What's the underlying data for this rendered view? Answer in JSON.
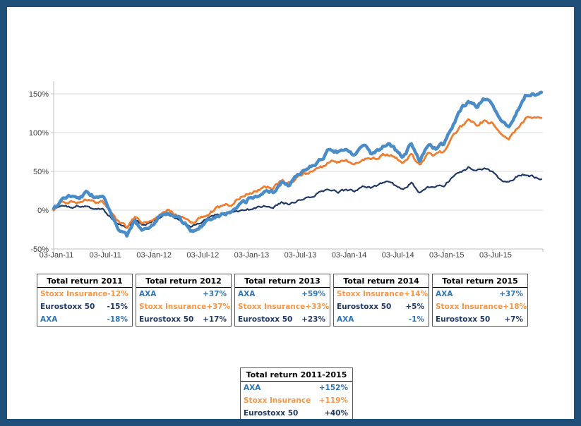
{
  "frame": {
    "border_color": "#1F4E79",
    "background": "#FFFFFF"
  },
  "chart_data": {
    "type": "line",
    "title": "",
    "xlabel": "",
    "ylabel": "",
    "grid": "horizontal",
    "legend": false,
    "ylim": [
      -50,
      175
    ],
    "y_ticks": [
      150,
      100,
      50,
      0,
      -50
    ],
    "y_tick_labels": [
      "150%",
      "100%",
      "50%",
      "0%",
      "-50%"
    ],
    "x_tick_labels": [
      "03-Jan-11",
      "03-Jul-11",
      "03-Jan-12",
      "03-Jul-12",
      "03-Jan-13",
      "03-Jul-13",
      "03-Jan-14",
      "03-Jul-14",
      "03-Jan-15",
      "03-Jul-15"
    ],
    "x_months_span": 60,
    "series": [
      {
        "name": "AXA",
        "color": "#4A8CC7",
        "stroke_width": 4.5,
        "monthly_values_pct": [
          0,
          14,
          18,
          15,
          22,
          17,
          21,
          -6,
          -24,
          -33,
          -14,
          -25,
          -18,
          -8,
          -2,
          -8,
          -16,
          -26,
          -21,
          -13,
          -6,
          -4,
          -2,
          6,
          14,
          18,
          25,
          23,
          36,
          33,
          47,
          54,
          58,
          66,
          80,
          76,
          80,
          70,
          86,
          74,
          79,
          87,
          78,
          68,
          86,
          62,
          84,
          80,
          86,
          106,
          128,
          141,
          133,
          143,
          137,
          118,
          106,
          127,
          147,
          149,
          152
        ]
      },
      {
        "name": "Stoxx Insurance",
        "color": "#ED7D31",
        "stroke_width": 2.8,
        "monthly_values_pct": [
          0,
          8,
          11,
          9,
          13,
          9,
          11,
          -4,
          -16,
          -21,
          -10,
          -16,
          -12,
          -6,
          -1,
          -5,
          -11,
          -16,
          -11,
          -4,
          2,
          5,
          9,
          16,
          22,
          25,
          31,
          29,
          38,
          35,
          43,
          47,
          51,
          56,
          64,
          61,
          63,
          57,
          68,
          64,
          69,
          73,
          68,
          61,
          72,
          57,
          73,
          72,
          76,
          93,
          106,
          117,
          110,
          116,
          112,
          97,
          91,
          106,
          117,
          120,
          119
        ]
      },
      {
        "name": "Eurostoxx 50",
        "color": "#1F3864",
        "stroke_width": 2.2,
        "monthly_values_pct": [
          0,
          5,
          3,
          6,
          4,
          0,
          3,
          -10,
          -19,
          -23,
          -12,
          -19,
          -15,
          -9,
          -6,
          -10,
          -16,
          -21,
          -16,
          -10,
          -6,
          -5,
          -3,
          -1,
          1,
          3,
          6,
          4,
          11,
          7,
          13,
          16,
          19,
          24,
          27,
          24,
          26,
          25,
          31,
          29,
          33,
          36,
          32,
          27,
          34,
          23,
          31,
          30,
          32,
          42,
          49,
          55,
          51,
          54,
          48,
          38,
          35,
          44,
          47,
          43,
          40
        ]
      }
    ],
    "axis_color": "#BFBFBF",
    "gridline_color": "#D9D9D9",
    "tick_label_color": "#404040"
  },
  "tables": [
    {
      "title": "Total return 2011",
      "rows": [
        {
          "label": "Stoxx Insurance",
          "value": "-12%",
          "color": "#F79646"
        },
        {
          "label": "Eurostoxx 50",
          "value": "-15%",
          "color": "#1F3864"
        },
        {
          "label": "AXA",
          "value": "-18%",
          "color": "#2E75B6"
        }
      ]
    },
    {
      "title": "Total return 2012",
      "rows": [
        {
          "label": "AXA",
          "value": "+37%",
          "color": "#2E75B6"
        },
        {
          "label": "Stoxx Insurance",
          "value": "+37%",
          "color": "#F79646"
        },
        {
          "label": "Eurostoxx 50",
          "value": "+17%",
          "color": "#1F3864"
        }
      ]
    },
    {
      "title": "Total return 2013",
      "rows": [
        {
          "label": "AXA",
          "value": "+59%",
          "color": "#2E75B6"
        },
        {
          "label": "Stoxx Insurance",
          "value": "+33%",
          "color": "#F79646"
        },
        {
          "label": "Eurostoxx 50",
          "value": "+23%",
          "color": "#1F3864"
        }
      ]
    },
    {
      "title": "Total return 2014",
      "rows": [
        {
          "label": "Stoxx Insurance",
          "value": "+14%",
          "color": "#F79646"
        },
        {
          "label": "Eurostoxx 50",
          "value": "+5%",
          "color": "#1F3864"
        },
        {
          "label": "AXA",
          "value": "-1%",
          "color": "#2E75B6"
        }
      ]
    },
    {
      "title": "Total return 2015",
      "rows": [
        {
          "label": "AXA",
          "value": "+37%",
          "color": "#2E75B6"
        },
        {
          "label": "Stoxx Insurance",
          "value": "+18%",
          "color": "#F79646"
        },
        {
          "label": "Eurostoxx 50",
          "value": "+7%",
          "color": "#1F3864"
        }
      ]
    },
    {
      "title": "Total return 2011-2015",
      "rows": [
        {
          "label": "AXA",
          "value": "+152%",
          "color": "#2E75B6"
        },
        {
          "label": "Stoxx Insurance",
          "value": "+119%",
          "color": "#F79646"
        },
        {
          "label": "Eurostoxx 50",
          "value": "+40%",
          "color": "#1F3864"
        }
      ]
    }
  ]
}
